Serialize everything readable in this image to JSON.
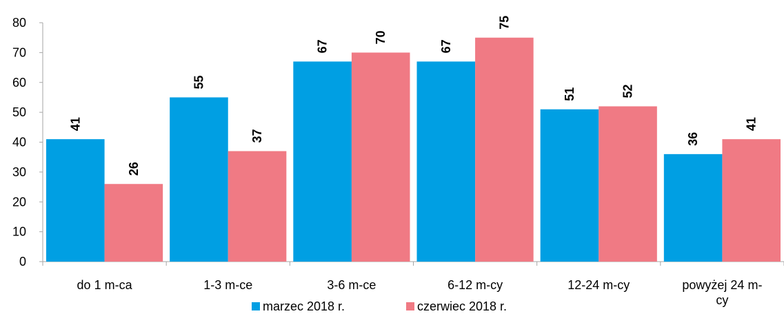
{
  "colors": {
    "series1": "#009FE3",
    "series2": "#F07A84",
    "axis": "#A6A6A6"
  },
  "chart_data": {
    "type": "bar",
    "title": "",
    "xlabel": "",
    "ylabel": "",
    "ylim": [
      0,
      80
    ],
    "yticks": [
      0,
      10,
      20,
      30,
      40,
      50,
      60,
      70,
      80
    ],
    "grid": false,
    "legend": "bottom",
    "categories": [
      "do 1 m-ca",
      "1-3 m-ce",
      "3-6 m-ce",
      "6-12 m-cy",
      "12-24 m-cy",
      "powyżej 24 m-cy"
    ],
    "series": [
      {
        "name": "marzec 2018 r.",
        "values": [
          41,
          55,
          67,
          67,
          51,
          36
        ]
      },
      {
        "name": "czerwiec 2018 r.",
        "values": [
          26,
          37,
          70,
          75,
          52,
          41
        ]
      }
    ]
  }
}
